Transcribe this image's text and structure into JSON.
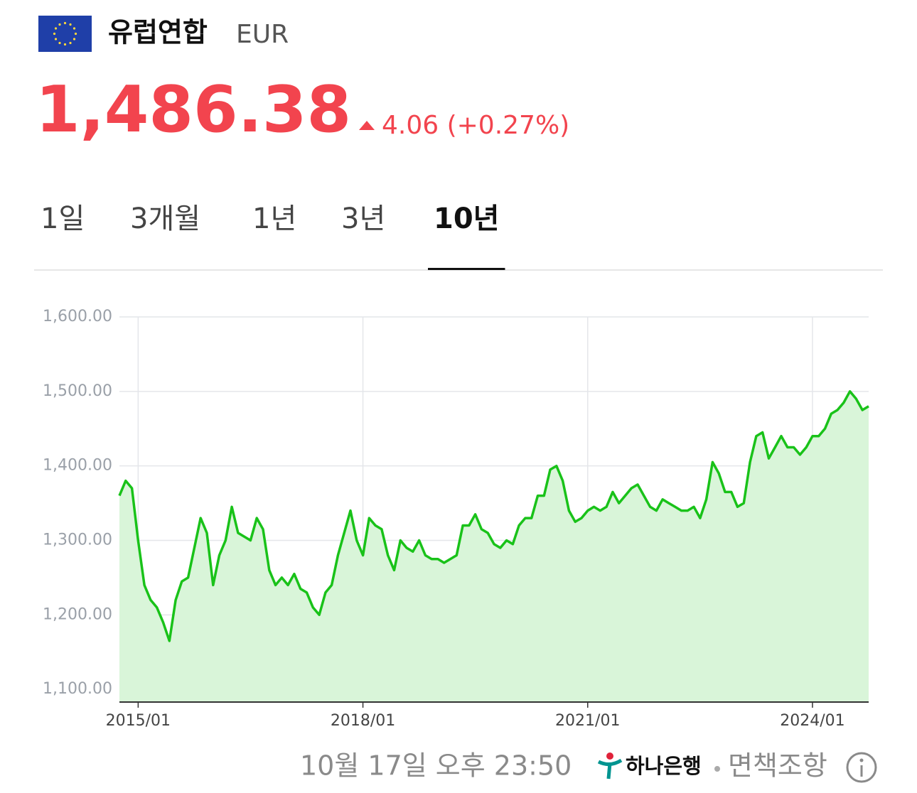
{
  "header": {
    "name": "유럽연합",
    "code": "EUR"
  },
  "quote": {
    "price": "1,486.38",
    "change": "4.06 (+0.27%)"
  },
  "tabs": {
    "items": [
      "1일",
      "3개월",
      "1년",
      "3년",
      "10년"
    ],
    "active": 4
  },
  "chart_data": {
    "type": "area",
    "color": "#19c219",
    "fill": "#d9f5d9",
    "grid": true,
    "xlim": [
      "2014/10",
      "2024/10"
    ],
    "xticks": [
      "2015/01",
      "2018/01",
      "2021/01",
      "2024/01"
    ],
    "ylim": [
      1083,
      1600
    ],
    "yticks": [
      {
        "value": 1100,
        "label": "1,100.00"
      },
      {
        "value": 1200,
        "label": "1,200.00"
      },
      {
        "value": 1300,
        "label": "1,300.00"
      },
      {
        "value": 1400,
        "label": "1,400.00"
      },
      {
        "value": 1500,
        "label": "1,500.00"
      },
      {
        "value": 1600,
        "label": "1,600.00"
      }
    ],
    "x": [
      "2014/10",
      "2014/11",
      "2014/12",
      "2015/01",
      "2015/02",
      "2015/03",
      "2015/04",
      "2015/05",
      "2015/06",
      "2015/07",
      "2015/08",
      "2015/09",
      "2015/10",
      "2015/11",
      "2015/12",
      "2016/01",
      "2016/02",
      "2016/03",
      "2016/04",
      "2016/05",
      "2016/06",
      "2016/07",
      "2016/08",
      "2016/09",
      "2016/10",
      "2016/11",
      "2016/12",
      "2017/01",
      "2017/02",
      "2017/03",
      "2017/04",
      "2017/05",
      "2017/06",
      "2017/07",
      "2017/08",
      "2017/09",
      "2017/10",
      "2017/11",
      "2017/12",
      "2018/01",
      "2018/02",
      "2018/03",
      "2018/04",
      "2018/05",
      "2018/06",
      "2018/07",
      "2018/08",
      "2018/09",
      "2018/10",
      "2018/11",
      "2018/12",
      "2019/01",
      "2019/02",
      "2019/03",
      "2019/04",
      "2019/05",
      "2019/06",
      "2019/07",
      "2019/08",
      "2019/09",
      "2019/10",
      "2019/11",
      "2019/12",
      "2020/01",
      "2020/02",
      "2020/03",
      "2020/04",
      "2020/05",
      "2020/06",
      "2020/07",
      "2020/08",
      "2020/09",
      "2020/10",
      "2020/11",
      "2020/12",
      "2021/01",
      "2021/02",
      "2021/03",
      "2021/04",
      "2021/05",
      "2021/06",
      "2021/07",
      "2021/08",
      "2021/09",
      "2021/10",
      "2021/11",
      "2021/12",
      "2022/01",
      "2022/02",
      "2022/03",
      "2022/04",
      "2022/05",
      "2022/06",
      "2022/07",
      "2022/08",
      "2022/09",
      "2022/10",
      "2022/11",
      "2022/12",
      "2023/01",
      "2023/02",
      "2023/03",
      "2023/04",
      "2023/05",
      "2023/06",
      "2023/07",
      "2023/08",
      "2023/09",
      "2023/10",
      "2023/11",
      "2023/12",
      "2024/01",
      "2024/02",
      "2024/03",
      "2024/04",
      "2024/05",
      "2024/06",
      "2024/07",
      "2024/08",
      "2024/09",
      "2024/10"
    ],
    "values": [
      1360,
      1380,
      1370,
      1300,
      1240,
      1220,
      1210,
      1190,
      1165,
      1220,
      1245,
      1250,
      1290,
      1330,
      1310,
      1240,
      1280,
      1300,
      1345,
      1310,
      1305,
      1300,
      1330,
      1315,
      1260,
      1240,
      1250,
      1240,
      1255,
      1235,
      1230,
      1210,
      1200,
      1230,
      1240,
      1280,
      1310,
      1340,
      1300,
      1280,
      1330,
      1320,
      1315,
      1280,
      1260,
      1300,
      1290,
      1285,
      1300,
      1280,
      1275,
      1275,
      1270,
      1275,
      1280,
      1320,
      1320,
      1335,
      1315,
      1310,
      1295,
      1290,
      1300,
      1295,
      1320,
      1330,
      1330,
      1360,
      1360,
      1395,
      1400,
      1380,
      1340,
      1325,
      1330,
      1340,
      1345,
      1340,
      1345,
      1365,
      1350,
      1360,
      1370,
      1375,
      1360,
      1345,
      1340,
      1355,
      1350,
      1345,
      1340,
      1340,
      1345,
      1330,
      1355,
      1405,
      1390,
      1365,
      1365,
      1345,
      1350,
      1405,
      1440,
      1445,
      1410,
      1425,
      1440,
      1425,
      1425,
      1415,
      1425,
      1440,
      1440,
      1450,
      1470,
      1475,
      1485,
      1500,
      1490,
      1475,
      1480
    ]
  },
  "footer": {
    "time": "10월 17일 오후 23:50",
    "bank": "하나은행",
    "disclaimer": "면책조항"
  }
}
